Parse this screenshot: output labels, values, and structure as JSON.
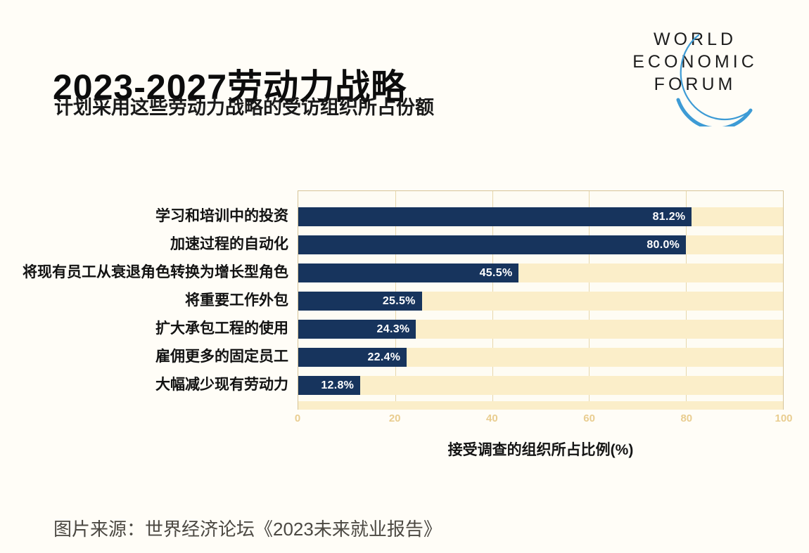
{
  "header": {
    "title": "2023-2027劳动力战略",
    "subtitle": "计划采用这些劳动力战略的受访组织所占份额"
  },
  "logo": {
    "lines": [
      "WORLD",
      "ECONOMIC",
      "FORUM"
    ],
    "arc_color": "#3d9bd5",
    "text_color": "#1c1c1c"
  },
  "chart_data": {
    "type": "bar",
    "orientation": "horizontal",
    "title": "2023-2027劳动力战略",
    "categories": [
      "学习和培训中的投资",
      "加速过程的自动化",
      "将现有员工从衰退角色转换为增长型角色",
      "将重要工作外包",
      "扩大承包工程的使用",
      "雇佣更多的固定员工",
      "大幅减少现有劳动力"
    ],
    "values": [
      81.2,
      80.0,
      45.5,
      25.5,
      24.3,
      22.4,
      12.8
    ],
    "value_labels": [
      "81.2%",
      "80.0%",
      "45.5%",
      "25.5%",
      "24.3%",
      "22.4%",
      "12.8%"
    ],
    "xlabel": "接受调查的组织所占比例(%)",
    "xlim": [
      0,
      100
    ],
    "x_ticks": [
      "0",
      "20",
      "40",
      "60",
      "80",
      "100"
    ],
    "x_tick_positions": [
      0,
      20,
      40,
      60,
      80,
      100
    ],
    "grid": "vertical",
    "legend": "none",
    "bar_color": "#17345d",
    "track_color": "#fbeec9",
    "gridline_color": "#e7d7ab",
    "tick_color": "#e9cd90",
    "value_label_color": "#ffffff"
  },
  "footer": {
    "source": "图片来源：世界经济论坛《2023未来就业报告》"
  }
}
